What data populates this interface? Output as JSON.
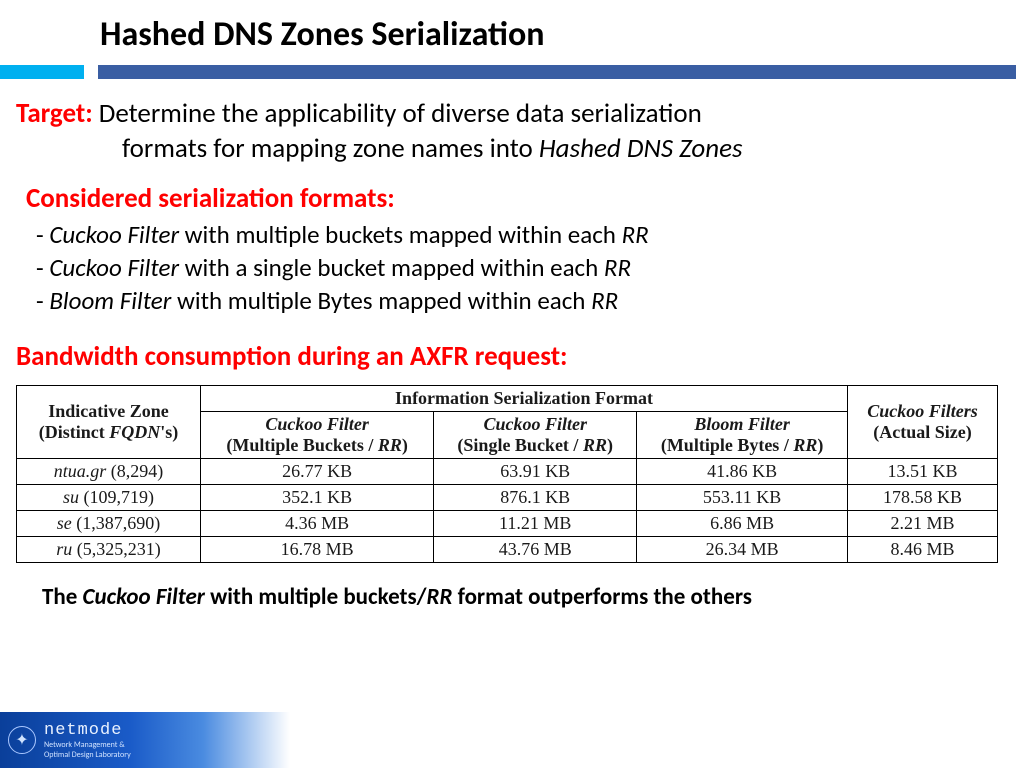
{
  "title": "Hashed DNS Zones Serialization",
  "ruler": {
    "short_color": "#00b0f0",
    "long_color": "#3a5ea3"
  },
  "target": {
    "label": "Target:",
    "line1": "Determine the applicability of diverse data serialization",
    "line2_prefix": "formats for mapping zone names into ",
    "line2_italic": "Hashed DNS Zones"
  },
  "formats_header": "Considered serialization formats:",
  "formats": [
    {
      "pre": "- ",
      "em1": "Cuckoo Filter",
      "mid": " with multiple buckets mapped within each ",
      "em2": "RR"
    },
    {
      "pre": "- ",
      "em1": "Cuckoo Filter",
      "mid": " with a single bucket mapped within each ",
      "em2": "RR"
    },
    {
      "pre": "- ",
      "em1": "Bloom Filter",
      "mid": " with multiple Bytes mapped within each ",
      "em2": "RR"
    }
  ],
  "bandwidth_header": "Bandwidth consumption during an AXFR request:",
  "table": {
    "col0_l1": "Indicative Zone",
    "col0_l2_pre": "(Distinct ",
    "col0_l2_em": "FQDN",
    "col0_l2_post": "'s)",
    "group_header": "Information Serialization Format",
    "col1_l1": "Cuckoo Filter",
    "col1_l2_pre": "(Multiple Buckets / ",
    "col1_l2_em": "RR",
    "col1_l2_post": ")",
    "col2_l1": "Cuckoo Filter",
    "col2_l2_pre": "(Single Bucket / ",
    "col2_l2_em": "RR",
    "col2_l2_post": ")",
    "col3_l1": "Bloom Filter",
    "col3_l2_pre": "(Multiple Bytes / ",
    "col3_l2_em": "RR",
    "col3_l2_post": ")",
    "col4_l1": "Cuckoo Filters",
    "col4_l2": "(Actual Size)",
    "rows": [
      {
        "zone_em": "ntua.gr",
        "zone_n": " (8,294)",
        "c1": "26.77 KB",
        "c2": "63.91 KB",
        "c3": "41.86 KB",
        "c4": "13.51 KB"
      },
      {
        "zone_em": "su",
        "zone_n": " (109,719)",
        "c1": "352.1 KB",
        "c2": "876.1 KB",
        "c3": "553.11 KB",
        "c4": "178.58 KB"
      },
      {
        "zone_em": "se",
        "zone_n": " (1,387,690)",
        "c1": "4.36 MB",
        "c2": "11.21 MB",
        "c3": "6.86 MB",
        "c4": "2.21 MB"
      },
      {
        "zone_em": "ru",
        "zone_n": " (5,325,231)",
        "c1": "16.78 MB",
        "c2": "43.76 MB",
        "c3": "26.34 MB",
        "c4": "8.46 MB"
      }
    ]
  },
  "conclusion": {
    "pre": "The ",
    "em1": "Cuckoo Filter",
    "mid": " with multiple buckets/",
    "em2": "RR",
    "post": " format outperforms the others"
  },
  "footer": {
    "brand": "netmode",
    "sub1": "Network Management &",
    "sub2": "Optimal Design Laboratory"
  }
}
